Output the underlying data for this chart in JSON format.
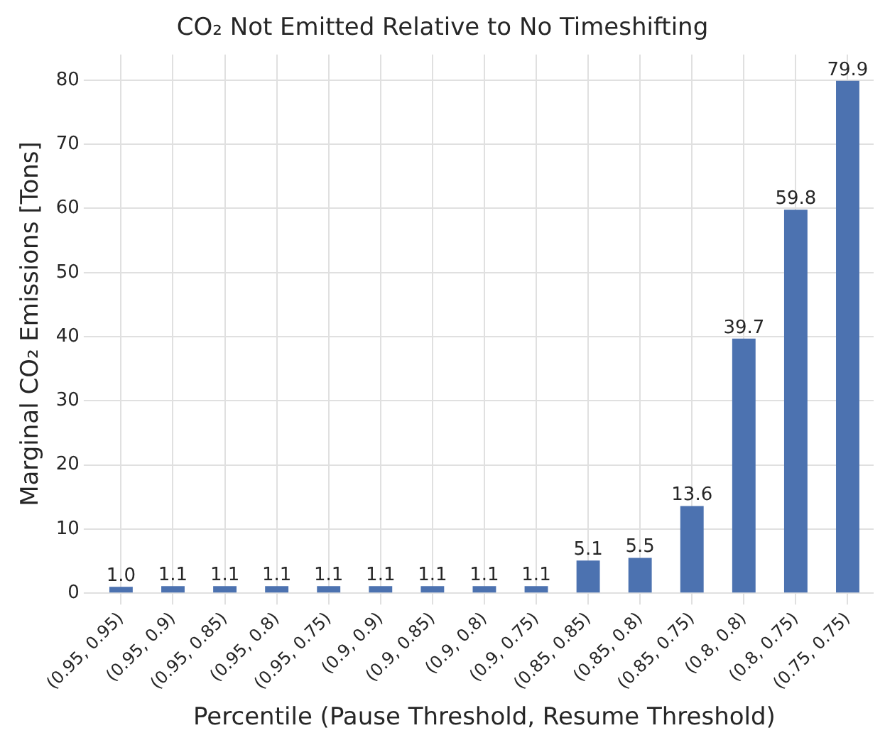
{
  "chart_data": {
    "type": "bar",
    "title": "CO₂ Not Emitted Relative to No Timeshifting",
    "xlabel": "Percentile (Pause Threshold, Resume Threshold)",
    "ylabel": "Marginal CO₂ Emissions [Tons]",
    "categories": [
      "(0.95, 0.95)",
      "(0.95, 0.9)",
      "(0.95, 0.85)",
      "(0.95, 0.8)",
      "(0.95, 0.75)",
      "(0.9, 0.9)",
      "(0.9, 0.85)",
      "(0.9, 0.8)",
      "(0.9, 0.75)",
      "(0.85, 0.85)",
      "(0.85, 0.8)",
      "(0.85, 0.75)",
      "(0.8, 0.8)",
      "(0.8, 0.75)",
      "(0.75, 0.75)"
    ],
    "values": [
      1.0,
      1.1,
      1.1,
      1.1,
      1.1,
      1.1,
      1.1,
      1.1,
      1.1,
      5.1,
      5.5,
      13.6,
      39.7,
      59.8,
      79.9
    ],
    "color": "#4c72b0",
    "ylim": [
      0,
      84
    ],
    "yticks": [
      0,
      10,
      20,
      30,
      40,
      50,
      60,
      70,
      80
    ],
    "grid": true,
    "value_labels": [
      "1.0",
      "1.1",
      "1.1",
      "1.1",
      "1.1",
      "1.1",
      "1.1",
      "1.1",
      "1.1",
      "5.1",
      "5.5",
      "13.6",
      "39.7",
      "59.8",
      "79.9"
    ]
  }
}
